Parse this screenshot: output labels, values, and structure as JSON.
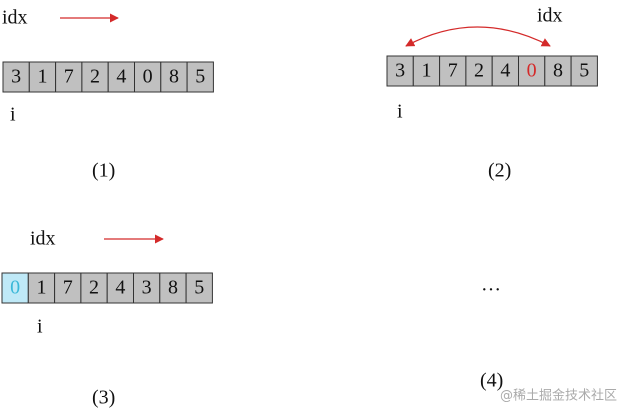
{
  "panels": [
    {
      "pointer": "idx",
      "index": "i",
      "cells": [
        "3",
        "1",
        "7",
        "2",
        "4",
        "0",
        "8",
        "5"
      ],
      "caption": "(1)"
    },
    {
      "pointer": "idx",
      "index": "i",
      "cells": [
        "3",
        "1",
        "7",
        "2",
        "4",
        "0",
        "8",
        "5"
      ],
      "caption": "(2)"
    },
    {
      "pointer": "idx",
      "index": "i",
      "cells": [
        "0",
        "1",
        "7",
        "2",
        "4",
        "3",
        "8",
        "5"
      ],
      "caption": "(3)"
    },
    {
      "ellipsis": "…",
      "caption": "(4)"
    }
  ],
  "watermark": "@稀土掘金技术社区"
}
